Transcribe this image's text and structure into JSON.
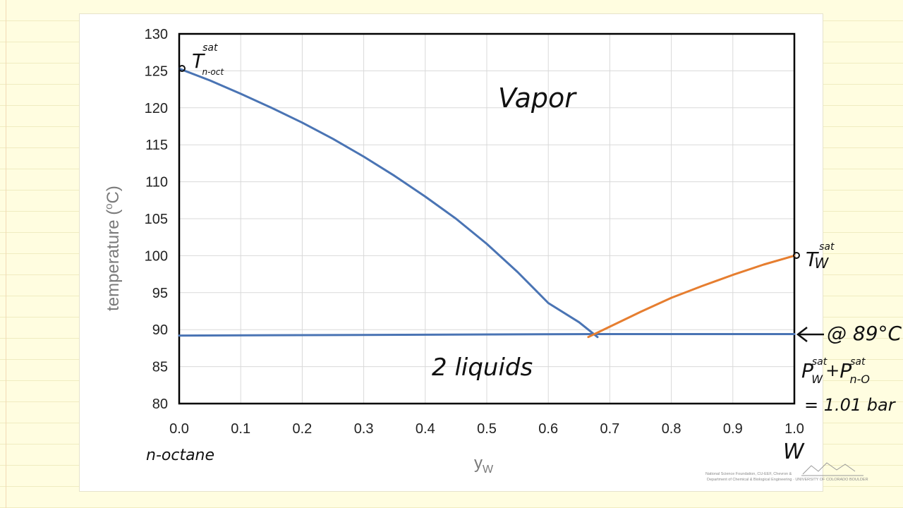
{
  "chart_data": {
    "type": "line",
    "xlabel": "y",
    "xlabel_sub": "W",
    "ylabel": "temperature (",
    "ylabel_sup": "o",
    "ylabel_end": "C)",
    "xlim": [
      0.0,
      1.0
    ],
    "ylim": [
      80,
      130
    ],
    "xticks": [
      "0.0",
      "0.1",
      "0.2",
      "0.3",
      "0.4",
      "0.5",
      "0.6",
      "0.7",
      "0.8",
      "0.9",
      "1.0"
    ],
    "yticks": [
      "130",
      "125",
      "120",
      "115",
      "110",
      "105",
      "100",
      "95",
      "90",
      "85",
      "80"
    ],
    "grid": true,
    "series": [
      {
        "color": "#4a74b4",
        "x": [
          0.0,
          0.05,
          0.1,
          0.15,
          0.2,
          0.25,
          0.3,
          0.35,
          0.4,
          0.45,
          0.5,
          0.55,
          0.6,
          0.65,
          0.68
        ],
        "y": [
          125.3,
          123.7,
          121.9,
          120.0,
          118.0,
          115.8,
          113.4,
          110.8,
          108.0,
          105.0,
          101.6,
          97.8,
          93.6,
          91.0,
          89.0
        ]
      },
      {
        "color": "#4a74b4",
        "x": [
          0.0,
          0.68,
          1.0
        ],
        "y": [
          89.2,
          89.4,
          89.4
        ]
      },
      {
        "color": "#e67e30",
        "x": [
          0.665,
          0.7,
          0.75,
          0.8,
          0.85,
          0.9,
          0.95,
          1.0
        ],
        "y": [
          89.0,
          90.4,
          92.4,
          94.3,
          95.9,
          97.4,
          98.8,
          100.0
        ]
      }
    ]
  },
  "annotations": {
    "t_noct_main": "T",
    "t_noct_sup": "sat",
    "t_noct_sub": "n-oct",
    "vapor": "Vapor",
    "two_liquids": "2 liquids",
    "t_w_main": "T",
    "t_w_sup": "sat",
    "t_w_sub": "W",
    "at_temp": "@ 89°C",
    "p_main": "P",
    "p_w_sup": "sat",
    "p_w_sub": "W",
    "plus": "+",
    "p2_main": "P",
    "p_no_sup": "sat",
    "p_no_sub": "n-O",
    "equals": "= 1.01 bar",
    "n_octane": "n-octane",
    "w_label": "W"
  },
  "footer": {
    "credit_line1": "National Science Foundation, CU-EEF, Chevron &",
    "credit_line2": "Department of Chemical & Biological Engineering · UNIVERSITY OF COLORADO BOULDER"
  },
  "colors": {
    "paper": "#fffde0",
    "blue": "#4a74b4",
    "orange": "#e67e30"
  }
}
